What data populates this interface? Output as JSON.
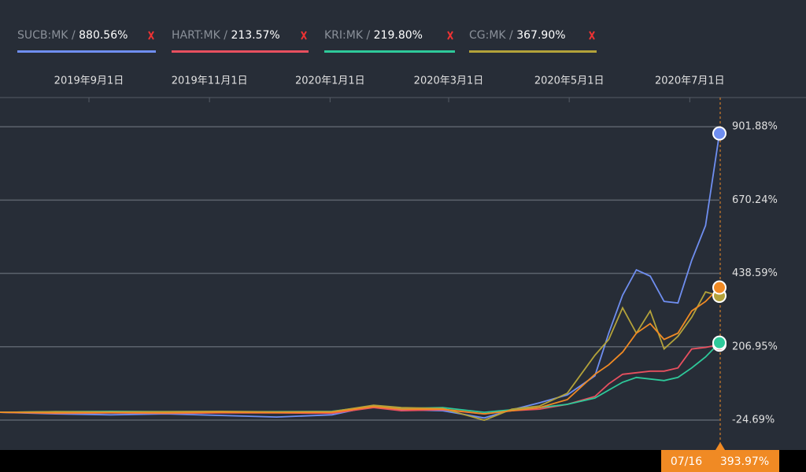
{
  "chart_data": {
    "type": "line",
    "x": [
      "2019-07-18",
      "2019-08-15",
      "2019-09-12",
      "2019-10-10",
      "2019-11-07",
      "2019-12-05",
      "2020-01-02",
      "2020-01-23",
      "2020-02-06",
      "2020-02-27",
      "2020-03-19",
      "2020-04-02",
      "2020-04-16",
      "2020-04-30",
      "2020-05-14",
      "2020-05-21",
      "2020-05-28",
      "2020-06-04",
      "2020-06-11",
      "2020-06-18",
      "2020-06-25",
      "2020-07-02",
      "2020-07-09",
      "2020-07-16"
    ],
    "xlim": [
      "2019-07-18",
      "2020-07-16"
    ],
    "xticks": [
      {
        "value": "2019-09-01",
        "label": "2019年9月1日"
      },
      {
        "value": "2019-11-01",
        "label": "2019年11月1日"
      },
      {
        "value": "2020-01-01",
        "label": "2020年1月1日"
      },
      {
        "value": "2020-03-01",
        "label": "2020年3月1日"
      },
      {
        "value": "2020-05-01",
        "label": "2020年5月1日"
      },
      {
        "value": "2020-07-01",
        "label": "2020年7月1日"
      }
    ],
    "ylim": [
      -119,
      994
    ],
    "yticks": [
      {
        "value": -24.69,
        "label": "-24.69%"
      },
      {
        "value": 206.95,
        "label": "206.95%"
      },
      {
        "value": 438.59,
        "label": "438.59%"
      },
      {
        "value": 670.24,
        "label": "670.24%"
      },
      {
        "value": 901.88,
        "label": "901.88%"
      }
    ],
    "grid": true,
    "series": [
      {
        "name": "SUCB:MK",
        "legend_value": "880.56%",
        "color": "#6f8ef0",
        "values": [
          0,
          -5,
          -8,
          -5,
          -10,
          -15,
          -8,
          20,
          8,
          5,
          -18,
          8,
          30,
          55,
          115,
          250,
          370,
          450,
          430,
          350,
          345,
          480,
          590,
          880.56
        ]
      },
      {
        "name": "HART:MK",
        "legend_value": "213.57%",
        "color": "#e8505f",
        "values": [
          0,
          -3,
          -2,
          -3,
          -2,
          -2,
          -3,
          15,
          5,
          8,
          -5,
          5,
          10,
          25,
          50,
          90,
          120,
          125,
          130,
          130,
          140,
          200,
          205,
          213.57
        ]
      },
      {
        "name": "KRI:MK",
        "legend_value": "219.80%",
        "color": "#2ec99a",
        "values": [
          0,
          2,
          3,
          2,
          2,
          2,
          3,
          20,
          12,
          15,
          0,
          8,
          15,
          25,
          45,
          70,
          95,
          110,
          105,
          100,
          110,
          140,
          175,
          219.8
        ]
      },
      {
        "name": "CG:MK",
        "legend_value": "367.90%",
        "color": "#b3a23a",
        "values": [
          0,
          2,
          1,
          2,
          3,
          1,
          2,
          22,
          15,
          12,
          -25,
          10,
          20,
          60,
          180,
          230,
          330,
          250,
          320,
          200,
          240,
          300,
          380,
          367.9
        ]
      },
      {
        "color": "#f08a24",
        "values": [
          0,
          -2,
          -1,
          -2,
          0,
          -1,
          0,
          18,
          10,
          10,
          -5,
          5,
          15,
          40,
          120,
          150,
          190,
          250,
          280,
          230,
          250,
          320,
          350,
          393.97
        ]
      }
    ],
    "crosshair_date": "07/16",
    "crosshair_value": "393.97%"
  }
}
